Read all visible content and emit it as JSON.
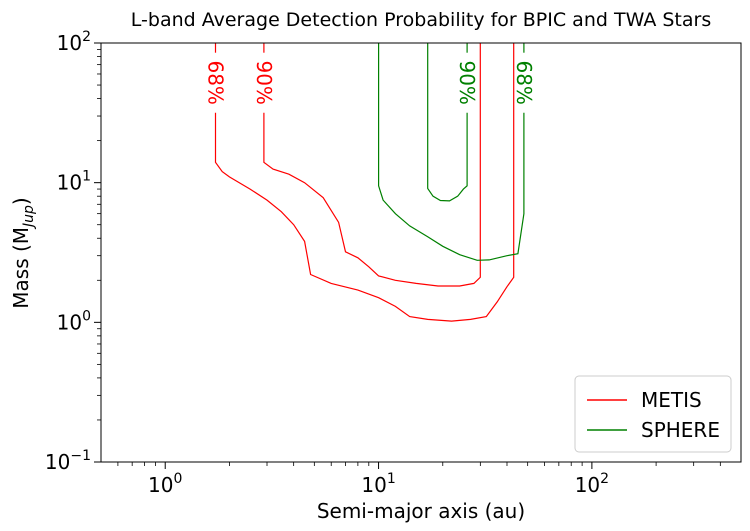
{
  "chart_data": {
    "type": "line",
    "title": "L-band Average Detection Probability for BPIC and TWA Stars",
    "xlabel": "Semi-major axis (au)",
    "ylabel_main": "Mass (M",
    "ylabel_sub": "Jup",
    "ylabel_end": ")",
    "x_scale": "log",
    "y_scale": "log",
    "xlim": [
      0.5,
      500
    ],
    "ylim": [
      0.1,
      100
    ],
    "x_ticks": [
      {
        "value": 1,
        "base": "10",
        "exp": "0"
      },
      {
        "value": 10,
        "base": "10",
        "exp": "1"
      },
      {
        "value": 100,
        "base": "10",
        "exp": "2"
      }
    ],
    "y_ticks": [
      {
        "value": 0.1,
        "base": "10",
        "exp": "−1"
      },
      {
        "value": 1,
        "base": "10",
        "exp": "0"
      },
      {
        "value": 10,
        "base": "10",
        "exp": "1"
      },
      {
        "value": 100,
        "base": "10",
        "exp": "2"
      }
    ],
    "legend_position": "bottom-right",
    "series": [
      {
        "name": "METIS",
        "color": "#ff0000",
        "contours": [
          {
            "label": "68%",
            "label_x": 1.72,
            "label_y": 52,
            "points": [
              [
                1.72,
                100
              ],
              [
                1.72,
                14
              ],
              [
                1.85,
                12
              ],
              [
                2.0,
                11
              ],
              [
                2.5,
                9
              ],
              [
                3.0,
                7.5
              ],
              [
                3.5,
                6.2
              ],
              [
                4.0,
                5
              ],
              [
                4.5,
                3.8
              ],
              [
                4.8,
                2.2
              ],
              [
                6,
                1.9
              ],
              [
                8,
                1.7
              ],
              [
                10,
                1.5
              ],
              [
                12,
                1.3
              ],
              [
                14,
                1.1
              ],
              [
                17,
                1.05
              ],
              [
                22,
                1.02
              ],
              [
                27,
                1.05
              ],
              [
                32,
                1.1
              ],
              [
                36,
                1.4
              ],
              [
                40,
                1.8
              ],
              [
                43,
                2.1
              ],
              [
                43,
                100
              ]
            ]
          },
          {
            "label": "90%",
            "label_x": 2.9,
            "label_y": 52,
            "points": [
              [
                2.9,
                100
              ],
              [
                2.9,
                14
              ],
              [
                3.2,
                12.5
              ],
              [
                3.8,
                11.5
              ],
              [
                4.5,
                10
              ],
              [
                5.5,
                7.8
              ],
              [
                6.5,
                5.2
              ],
              [
                7,
                3.2
              ],
              [
                8,
                2.9
              ],
              [
                9,
                2.5
              ],
              [
                10,
                2.15
              ],
              [
                12,
                2.0
              ],
              [
                15,
                1.9
              ],
              [
                19,
                1.82
              ],
              [
                24,
                1.82
              ],
              [
                28,
                1.9
              ],
              [
                30,
                2.1
              ],
              [
                30,
                100
              ]
            ]
          }
        ]
      },
      {
        "name": "SPHERE",
        "color": "#008000",
        "contours": [
          {
            "label": "68%",
            "label_x": 48,
            "label_y": 52,
            "points": [
              [
                10,
                100
              ],
              [
                10,
                9.5
              ],
              [
                10.5,
                7.5
              ],
              [
                12,
                6
              ],
              [
                14,
                4.9
              ],
              [
                17,
                4.1
              ],
              [
                20,
                3.5
              ],
              [
                24,
                3.05
              ],
              [
                29,
                2.78
              ],
              [
                33,
                2.8
              ],
              [
                40,
                3.0
              ],
              [
                45,
                3.1
              ],
              [
                48,
                6
              ],
              [
                48,
                100
              ]
            ]
          },
          {
            "label": "90%",
            "label_x": 26,
            "label_y": 52,
            "points": [
              [
                17,
                100
              ],
              [
                17,
                9.1
              ],
              [
                18,
                8.0
              ],
              [
                19.5,
                7.45
              ],
              [
                21.5,
                7.4
              ],
              [
                23.5,
                8.0
              ],
              [
                25,
                9.0
              ],
              [
                26,
                9.5
              ],
              [
                26,
                100
              ]
            ]
          }
        ]
      }
    ]
  }
}
